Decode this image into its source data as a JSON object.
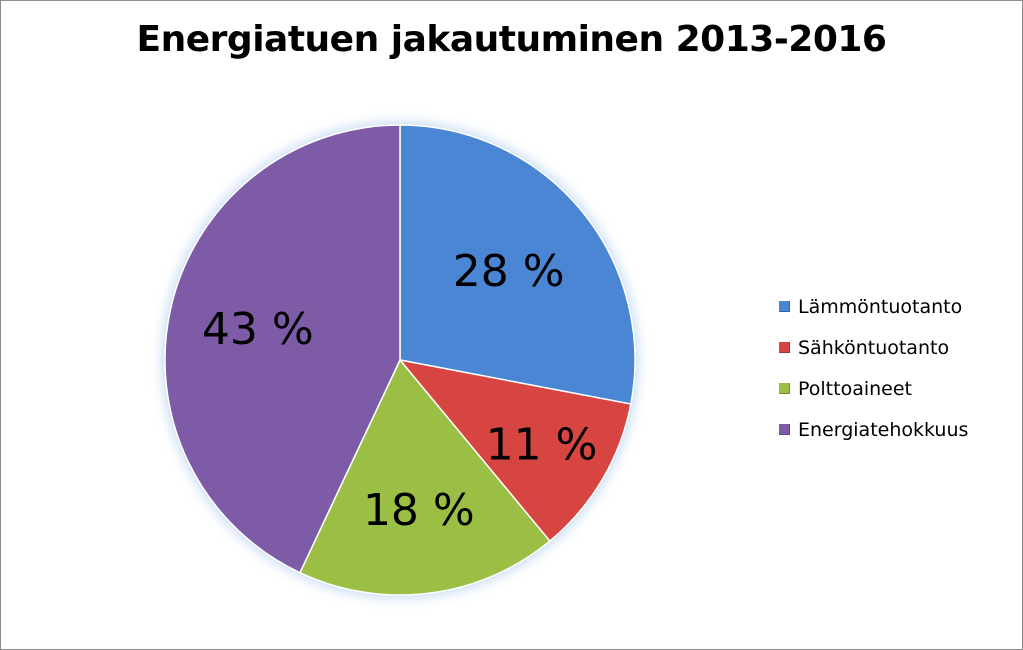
{
  "chart_data": {
    "type": "pie",
    "title": "Energiatuen jakautuminen 2013-2016",
    "legend_position": "right",
    "series": [
      {
        "name": "Lämmöntuotanto",
        "value": 28,
        "label": "28 %",
        "color": "#4a86d4"
      },
      {
        "name": "Sähköntuotanto",
        "value": 11,
        "label": "11 %",
        "color": "#d64541"
      },
      {
        "name": "Polttoaineet",
        "value": 18,
        "label": "18 %",
        "color": "#9bbf45"
      },
      {
        "name": "Energiatehokkuus",
        "value": 43,
        "label": "43 %",
        "color": "#7d5ba6"
      }
    ]
  }
}
